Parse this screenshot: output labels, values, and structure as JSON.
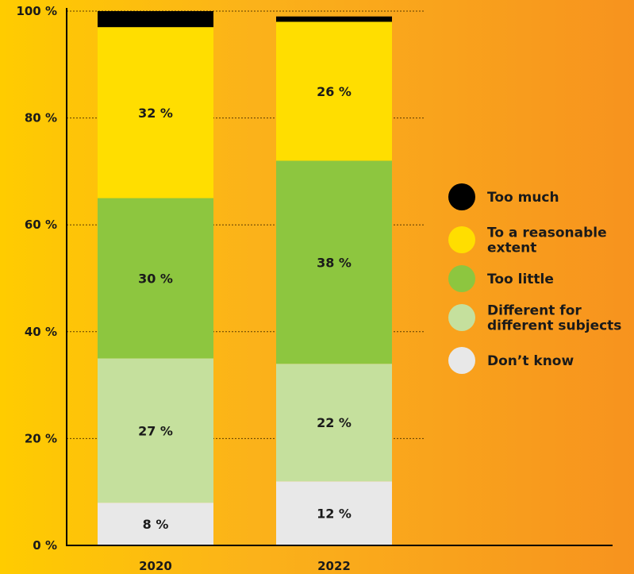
{
  "chart_data": {
    "type": "bar",
    "stacked": true,
    "categories": [
      "2020",
      "2022"
    ],
    "ylim": [
      0,
      100
    ],
    "yticks": [
      "0 %",
      "20 %",
      "40 %",
      "60 %",
      "80 %",
      "100 %"
    ],
    "series": [
      {
        "name": "Don’t know",
        "color": "#e8e8e8",
        "values": [
          8,
          12
        ],
        "labels": [
          "8 %",
          "12 %"
        ]
      },
      {
        "name": "Different for different subjects",
        "color": "#c5e09d",
        "values": [
          27,
          22
        ],
        "labels": [
          "27 %",
          "22 %"
        ]
      },
      {
        "name": "Too little",
        "color": "#8dc63f",
        "values": [
          30,
          38
        ],
        "labels": [
          "30 %",
          "38 %"
        ]
      },
      {
        "name": "To a reasonable extent",
        "color": "#ffde00",
        "values": [
          32,
          26
        ],
        "labels": [
          "32 %",
          "26 %"
        ]
      },
      {
        "name": "Too much",
        "color": "#000000",
        "values": [
          3,
          1
        ],
        "labels": [
          "",
          ""
        ]
      }
    ],
    "legend": [
      {
        "lines": [
          "Too much"
        ],
        "color": "#000000"
      },
      {
        "lines": [
          "To a reasonable",
          "extent"
        ],
        "color": "#ffde00"
      },
      {
        "lines": [
          "Too little"
        ],
        "color": "#8dc63f"
      },
      {
        "lines": [
          "Different for",
          "different subjects"
        ],
        "color": "#c5e09d"
      },
      {
        "lines": [
          "Don’t know"
        ],
        "color": "#e8e8e8"
      }
    ],
    "legend_position": "right",
    "grid": "dotted"
  }
}
